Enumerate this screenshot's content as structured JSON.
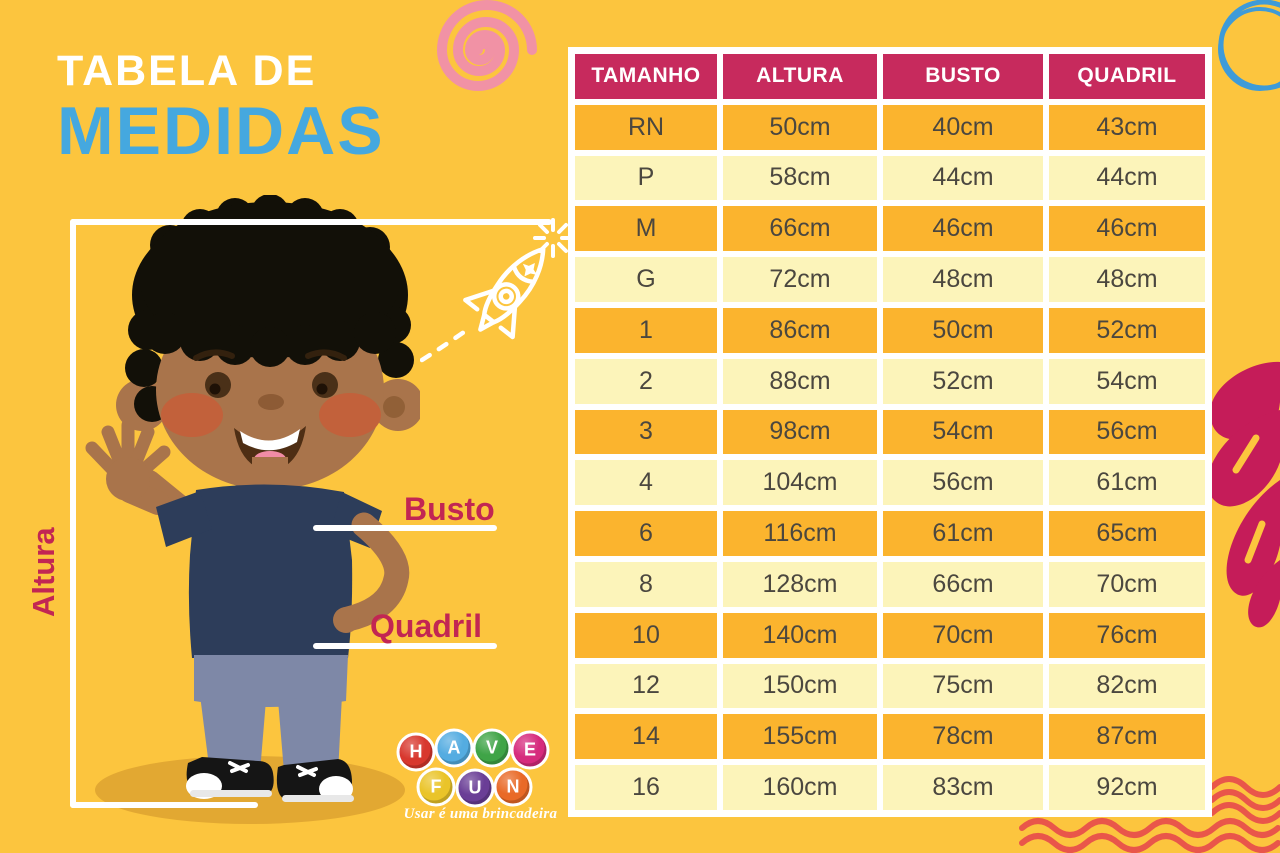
{
  "title": {
    "line1": "TABELA DE",
    "line2": "MEDIDAS"
  },
  "figure_labels": {
    "height": "Altura",
    "bust": "Busto",
    "hip": "Quadril"
  },
  "chart_data": {
    "type": "table",
    "title": "TABELA DE MEDIDAS",
    "columns": [
      "TAMANHO",
      "ALTURA",
      "BUSTO",
      "QUADRIL"
    ],
    "rows": [
      [
        "RN",
        "50cm",
        "40cm",
        "43cm"
      ],
      [
        "P",
        "58cm",
        "44cm",
        "44cm"
      ],
      [
        "M",
        "66cm",
        "46cm",
        "46cm"
      ],
      [
        "G",
        "72cm",
        "48cm",
        "48cm"
      ],
      [
        "1",
        "86cm",
        "50cm",
        "52cm"
      ],
      [
        "2",
        "88cm",
        "52cm",
        "54cm"
      ],
      [
        "3",
        "98cm",
        "54cm",
        "56cm"
      ],
      [
        "4",
        "104cm",
        "56cm",
        "61cm"
      ],
      [
        "6",
        "116cm",
        "61cm",
        "65cm"
      ],
      [
        "8",
        "128cm",
        "66cm",
        "70cm"
      ],
      [
        "10",
        "140cm",
        "70cm",
        "76cm"
      ],
      [
        "12",
        "150cm",
        "75cm",
        "82cm"
      ],
      [
        "14",
        "155cm",
        "78cm",
        "87cm"
      ],
      [
        "16",
        "160cm",
        "83cm",
        "92cm"
      ]
    ]
  },
  "logo": {
    "balls": [
      {
        "letter": "H",
        "color": "#D8382E"
      },
      {
        "letter": "A",
        "color": "#54ACE1"
      },
      {
        "letter": "V",
        "color": "#3FA447"
      },
      {
        "letter": "E",
        "color": "#D62B7D"
      },
      {
        "letter": "F",
        "color": "#EAC429"
      },
      {
        "letter": "U",
        "color": "#6A3E96"
      },
      {
        "letter": "N",
        "color": "#E96A27"
      }
    ],
    "tagline": "Usar é uma brincadeira"
  },
  "colors": {
    "background": "#FCC53E",
    "header": "#C72A5D",
    "row_deep": "#FBB42E",
    "row_pale": "#FCF4BA",
    "title_blue": "#45A8DF",
    "label_crimson": "#C22653",
    "wave_red": "#E9564A",
    "spiral_pink": "#F192A5",
    "doodle_blue": "#3E9BD8",
    "petal_magenta": "#C51C59"
  }
}
